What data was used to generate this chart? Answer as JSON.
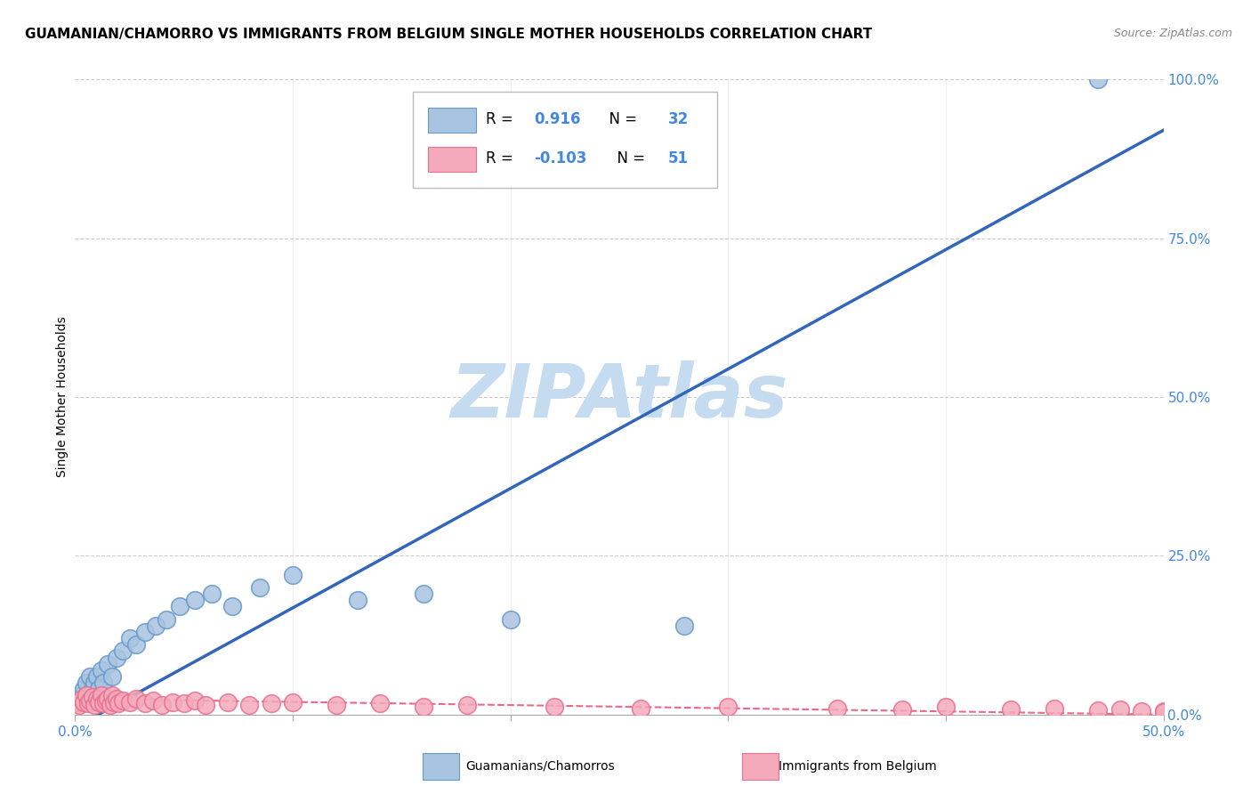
{
  "title": "GUAMANIAN/CHAMORRO VS IMMIGRANTS FROM BELGIUM SINGLE MOTHER HOUSEHOLDS CORRELATION CHART",
  "source": "Source: ZipAtlas.com",
  "ylabel": "Single Mother Households",
  "xlim": [
    0.0,
    0.5
  ],
  "ylim": [
    0.0,
    1.0
  ],
  "xticks": [
    0.0,
    0.1,
    0.2,
    0.3,
    0.4,
    0.5
  ],
  "yticks": [
    0.0,
    0.25,
    0.5,
    0.75,
    1.0
  ],
  "ytick_labels": [
    "0.0%",
    "25.0%",
    "50.0%",
    "75.0%",
    "100.0%"
  ],
  "blue_color": "#A8C4E0",
  "blue_edge_color": "#6699CC",
  "pink_color": "#F4AABB",
  "pink_edge_color": "#E87090",
  "blue_line_color": "#3366BB",
  "pink_line_color": "#EE6688",
  "R_blue": 0.916,
  "N_blue": 32,
  "R_pink": -0.103,
  "N_pink": 51,
  "watermark": "ZIPAtlas",
  "watermark_color": "#C5DCF0",
  "legend_label_blue": "Guamanians/Chamorros",
  "legend_label_pink": "Immigrants from Belgium",
  "blue_scatter_x": [
    0.002,
    0.003,
    0.004,
    0.005,
    0.006,
    0.007,
    0.008,
    0.009,
    0.01,
    0.011,
    0.012,
    0.013,
    0.015,
    0.017,
    0.019,
    0.022,
    0.025,
    0.028,
    0.032,
    0.037,
    0.042,
    0.048,
    0.055,
    0.063,
    0.072,
    0.085,
    0.1,
    0.13,
    0.16,
    0.2,
    0.28,
    0.47
  ],
  "blue_scatter_y": [
    0.02,
    0.03,
    0.04,
    0.05,
    0.03,
    0.06,
    0.04,
    0.05,
    0.06,
    0.04,
    0.07,
    0.05,
    0.08,
    0.06,
    0.09,
    0.1,
    0.12,
    0.11,
    0.13,
    0.14,
    0.15,
    0.17,
    0.18,
    0.19,
    0.17,
    0.2,
    0.22,
    0.18,
    0.19,
    0.15,
    0.14,
    1.0
  ],
  "pink_scatter_x": [
    0.001,
    0.002,
    0.003,
    0.004,
    0.005,
    0.006,
    0.007,
    0.008,
    0.009,
    0.01,
    0.011,
    0.012,
    0.013,
    0.014,
    0.015,
    0.016,
    0.017,
    0.018,
    0.019,
    0.02,
    0.022,
    0.025,
    0.028,
    0.032,
    0.036,
    0.04,
    0.045,
    0.05,
    0.055,
    0.06,
    0.07,
    0.08,
    0.09,
    0.1,
    0.12,
    0.14,
    0.16,
    0.18,
    0.22,
    0.26,
    0.3,
    0.35,
    0.38,
    0.4,
    0.43,
    0.45,
    0.47,
    0.48,
    0.49,
    0.5,
    0.5
  ],
  "pink_scatter_y": [
    0.02,
    0.015,
    0.025,
    0.02,
    0.03,
    0.018,
    0.022,
    0.028,
    0.015,
    0.025,
    0.02,
    0.03,
    0.018,
    0.022,
    0.025,
    0.015,
    0.03,
    0.02,
    0.025,
    0.018,
    0.022,
    0.02,
    0.025,
    0.018,
    0.022,
    0.015,
    0.02,
    0.018,
    0.022,
    0.015,
    0.02,
    0.015,
    0.018,
    0.02,
    0.015,
    0.018,
    0.012,
    0.015,
    0.012,
    0.01,
    0.012,
    0.01,
    0.008,
    0.012,
    0.008,
    0.01,
    0.007,
    0.008,
    0.006,
    0.005,
    0.004
  ],
  "grid_color": "#CCCCCC",
  "background_color": "#FFFFFF",
  "title_fontsize": 11,
  "axis_label_fontsize": 10,
  "tick_fontsize": 11,
  "right_tick_color": "#4488DD",
  "bottom_tick_color": "#4488DD"
}
